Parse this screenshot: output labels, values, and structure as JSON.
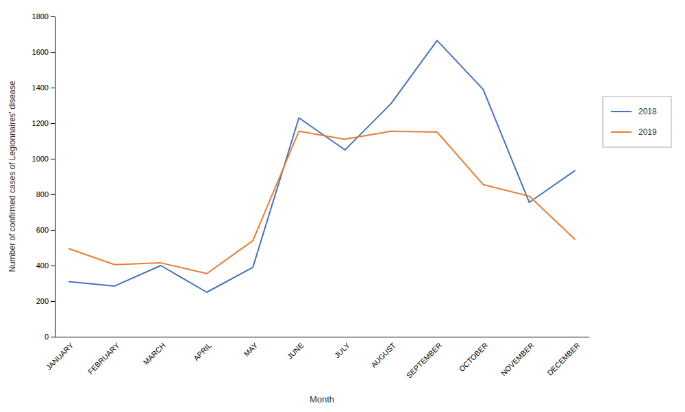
{
  "chart_data": {
    "type": "line",
    "xlabel": "Month",
    "ylabel": "Number of confirmed cases of Legionnaires' disease",
    "categories": [
      "JANUARY",
      "FEBRUARY",
      "MARCH",
      "APRIL",
      "MAY",
      "JUNE",
      "JULY",
      "AUGUST",
      "SEPTEMBER",
      "OCTOBER",
      "NOVEMBER",
      "DECEMBER"
    ],
    "series": [
      {
        "name": "2018",
        "color": "#4472C4",
        "values": [
          310,
          285,
          400,
          250,
          390,
          1230,
          1050,
          1310,
          1665,
          1390,
          755,
          935
        ]
      },
      {
        "name": "2019",
        "color": "#ED7D31",
        "values": [
          495,
          405,
          415,
          355,
          540,
          1155,
          1110,
          1155,
          1150,
          855,
          790,
          545
        ]
      }
    ],
    "ylim": [
      0,
      1800
    ],
    "yticks": [
      0,
      200,
      400,
      600,
      800,
      1000,
      1200,
      1400,
      1600,
      1800
    ],
    "grid": false,
    "legend": "right"
  }
}
